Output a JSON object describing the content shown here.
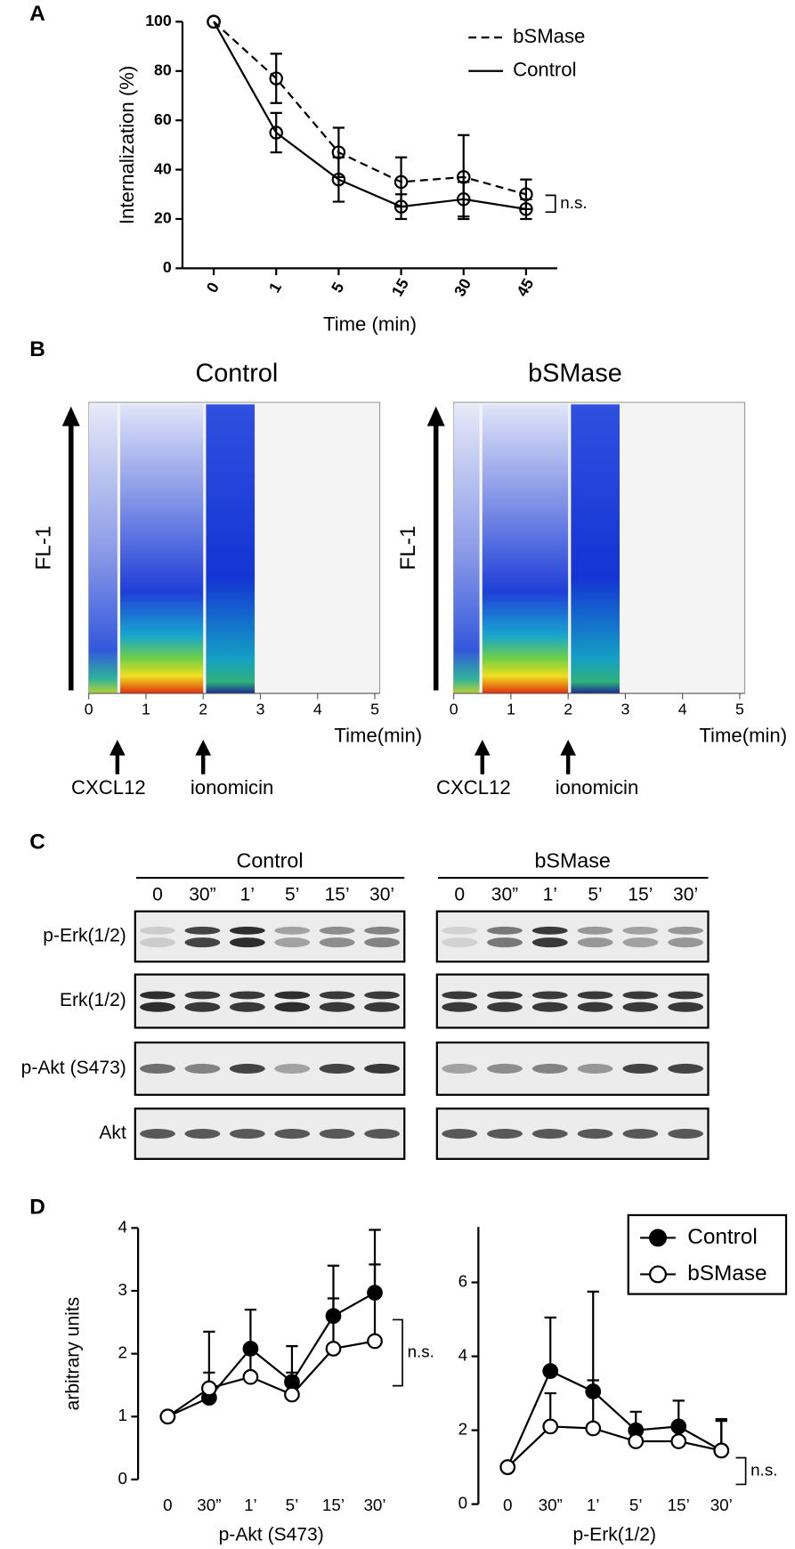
{
  "chart_data": [
    {
      "type": "line",
      "label": "A",
      "categories": [
        "0",
        "1",
        "5",
        "15",
        "30",
        "45"
      ],
      "xlabel": "Time (min)",
      "ylabel": "Internalization (%)",
      "ylim": [
        0,
        100
      ],
      "yticks": [
        0,
        20,
        40,
        60,
        80,
        100
      ],
      "error_bars": "both",
      "legend": "upper right",
      "series": [
        {
          "name": "bSMase",
          "color": "#000000",
          "linestyle": "dashed",
          "marker": "open",
          "values": [
            100,
            77,
            47,
            35,
            37,
            30
          ],
          "errors": [
            0,
            10,
            10,
            10,
            17,
            6
          ]
        },
        {
          "name": "Control",
          "color": "#000000",
          "linestyle": "solid",
          "marker": "open",
          "values": [
            100,
            55,
            36,
            25,
            28,
            24
          ],
          "errors": [
            0,
            8,
            9,
            5,
            7,
            4
          ]
        }
      ],
      "annotations": [
        {
          "text": "n.s."
        }
      ]
    },
    {
      "type": "density",
      "label": "B",
      "title": "Control",
      "xlabel": "Time(min)",
      "ylabel": "FL-1",
      "xlim": [
        0,
        5
      ],
      "xticks": [
        0,
        1,
        2,
        3,
        4,
        5
      ],
      "segments": [
        [
          0,
          0.5
        ],
        [
          0.55,
          2
        ],
        [
          2.05,
          2.9
        ]
      ],
      "annotations": [
        {
          "text": "CXCL12",
          "x": 0.5
        },
        {
          "text": "ionomicin",
          "x": 2
        }
      ]
    },
    {
      "type": "density",
      "title": "bSMase",
      "xlabel": "Time(min)",
      "ylabel": "FL-1",
      "xlim": [
        0,
        5
      ],
      "xticks": [
        0,
        1,
        2,
        3,
        4,
        5
      ],
      "segments": [
        [
          0,
          0.45
        ],
        [
          0.5,
          2
        ],
        [
          2.05,
          2.9
        ]
      ],
      "annotations": [
        {
          "text": "CXCL12",
          "x": 0.5
        },
        {
          "text": "ionomicin",
          "x": 2
        }
      ]
    },
    {
      "type": "blot",
      "label": "C",
      "groups": [
        {
          "title": "Control",
          "lanes": [
            "0",
            "30”",
            "1’",
            "5’",
            "15’",
            "30’"
          ]
        },
        {
          "title": "bSMase",
          "lanes": [
            "0",
            "30”",
            "1’",
            "5’",
            "15’",
            "30’"
          ]
        }
      ],
      "rows": [
        {
          "name": "p-Erk(1/2)",
          "doublet": true,
          "values": [
            [
              0.15,
              0.8,
              0.9,
              0.35,
              0.45,
              0.5
            ],
            [
              0.12,
              0.55,
              0.85,
              0.4,
              0.35,
              0.4
            ]
          ]
        },
        {
          "name": "Erk(1/2)",
          "doublet": true,
          "values": [
            [
              0.9,
              0.85,
              0.85,
              0.9,
              0.85,
              0.85
            ],
            [
              0.85,
              0.85,
              0.85,
              0.85,
              0.85,
              0.85
            ]
          ]
        },
        {
          "name": "p-Akt (S473)",
          "doublet": false,
          "values": [
            [
              0.6,
              0.5,
              0.8,
              0.35,
              0.8,
              0.85
            ],
            [
              0.35,
              0.45,
              0.5,
              0.4,
              0.8,
              0.8
            ]
          ]
        },
        {
          "name": "Akt",
          "doublet": false,
          "values": [
            [
              0.7,
              0.7,
              0.7,
              0.7,
              0.7,
              0.7
            ],
            [
              0.7,
              0.7,
              0.7,
              0.7,
              0.7,
              0.7
            ]
          ]
        }
      ]
    },
    {
      "type": "line",
      "label": "D",
      "categories": [
        "0",
        "30”",
        "1’",
        "5’",
        "15’",
        "30’"
      ],
      "xlabel": "p-Akt (S473)",
      "ylabel": "arbitrary units",
      "ylim": [
        0,
        4
      ],
      "yticks": [
        0,
        1,
        2,
        3,
        4
      ],
      "error_bars": "upper",
      "series": [
        {
          "color": "#000000",
          "linestyle": "solid",
          "marker": "filled",
          "values": [
            1,
            1.3,
            2.08,
            1.55,
            2.6,
            2.97
          ],
          "errors": [
            0,
            0.4,
            0.62,
            0.57,
            0.8,
            1.0
          ]
        },
        {
          "color": "#000000",
          "linestyle": "solid",
          "marker": "open",
          "values": [
            1,
            1.45,
            1.63,
            1.35,
            2.08,
            2.2
          ],
          "errors": [
            0,
            0.9,
            0.4,
            0.35,
            0.8,
            1.22
          ]
        }
      ],
      "annotations": [
        {
          "text": "n.s."
        }
      ]
    },
    {
      "type": "line",
      "categories": [
        "0",
        "30”",
        "1’",
        "5’",
        "15’",
        "30’"
      ],
      "xlabel": "p-Erk(1/2)",
      "ylim": [
        0,
        7.5
      ],
      "yticks": [
        0,
        2,
        4,
        6
      ],
      "error_bars": "upper",
      "legend": "upper right",
      "series": [
        {
          "name": "Control",
          "color": "#000000",
          "linestyle": "solid",
          "marker": "filled",
          "values": [
            1,
            3.6,
            3.05,
            2.0,
            2.1,
            1.45
          ],
          "errors": [
            0,
            1.45,
            2.7,
            0.5,
            0.7,
            0.85
          ]
        },
        {
          "name": "bSMase",
          "color": "#000000",
          "linestyle": "solid",
          "marker": "open",
          "values": [
            1,
            2.1,
            2.05,
            1.7,
            1.7,
            1.45
          ],
          "errors": [
            0,
            0.9,
            1.3,
            0.4,
            0.3,
            0.8
          ]
        }
      ],
      "annotations": [
        {
          "text": "n.s."
        }
      ]
    }
  ]
}
